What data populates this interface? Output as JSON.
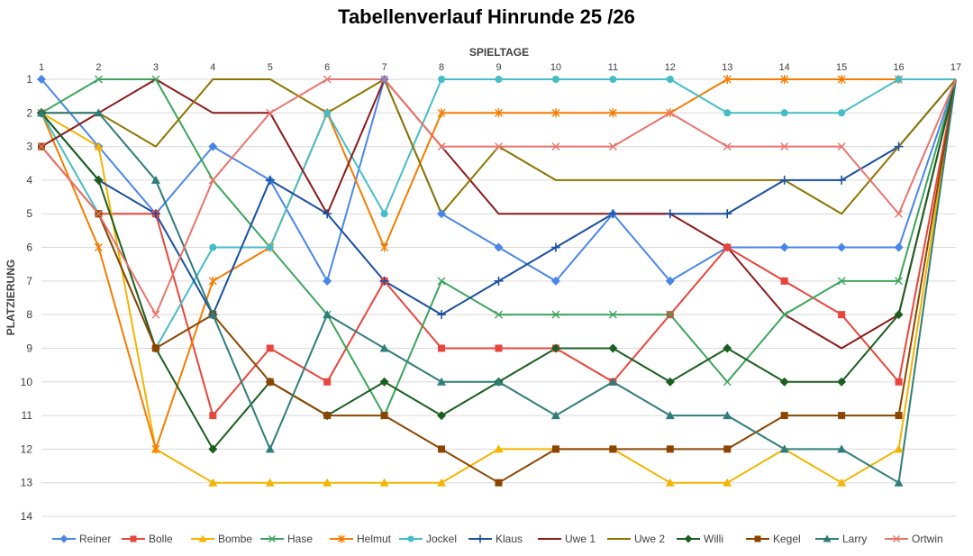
{
  "chart_data": {
    "type": "line",
    "title": "Tabellenverlauf Hinrunde 25 /26",
    "xlabel": "SPIELTAGE",
    "ylabel": "PLATZIERUNG",
    "x": [
      1,
      2,
      3,
      4,
      5,
      6,
      7,
      8,
      9,
      10,
      11,
      12,
      13,
      14,
      15,
      16,
      17
    ],
    "x_ticks": [
      "1",
      "2",
      "3",
      "4",
      "5",
      "6",
      "7",
      "8",
      "9",
      "10",
      "11",
      "12",
      "13",
      "14",
      "15",
      "16",
      "17"
    ],
    "y_ticks": [
      "1",
      "2",
      "3",
      "4",
      "5",
      "6",
      "7",
      "8",
      "9",
      "10",
      "11",
      "12",
      "13",
      "14"
    ],
    "ylim": [
      1,
      14
    ],
    "y_reversed": true,
    "x_axis_position": "top",
    "grid": true,
    "legend": "bottom",
    "series": [
      {
        "name": "Reiner",
        "color": "#4A86E8",
        "marker": "diamond",
        "values": [
          1,
          3,
          5,
          3,
          4,
          7,
          1,
          5,
          6,
          7,
          5,
          7,
          6,
          6,
          6,
          6,
          1
        ]
      },
      {
        "name": "Bolle",
        "color": "#E8453C",
        "marker": "square",
        "values": [
          3,
          5,
          5,
          11,
          9,
          10,
          7,
          9,
          9,
          9,
          10,
          8,
          6,
          7,
          8,
          10,
          1
        ]
      },
      {
        "name": "Bombe",
        "color": "#F4B400",
        "marker": "triangle",
        "values": [
          2,
          3,
          12,
          13,
          13,
          13,
          13,
          13,
          12,
          12,
          12,
          13,
          13,
          12,
          13,
          12,
          1
        ]
      },
      {
        "name": "Hase",
        "color": "#3BA55C",
        "marker": "x",
        "values": [
          2,
          1,
          1,
          4,
          6,
          8,
          11,
          7,
          8,
          8,
          8,
          8,
          10,
          8,
          7,
          7,
          1
        ]
      },
      {
        "name": "Helmut",
        "color": "#F57C00",
        "marker": "star",
        "values": [
          2,
          6,
          12,
          7,
          6,
          2,
          6,
          2,
          2,
          2,
          2,
          2,
          1,
          1,
          1,
          1,
          1
        ]
      },
      {
        "name": "Jockel",
        "color": "#46BDC6",
        "marker": "circle",
        "values": [
          2,
          5,
          9,
          6,
          6,
          2,
          5,
          1,
          1,
          1,
          1,
          1,
          2,
          2,
          2,
          1,
          1
        ]
      },
      {
        "name": "Klaus",
        "color": "#1A4FA0",
        "marker": "plus",
        "values": [
          2,
          4,
          5,
          8,
          4,
          5,
          7,
          8,
          7,
          6,
          5,
          5,
          5,
          4,
          4,
          3,
          1
        ]
      },
      {
        "name": "Uwe 1",
        "color": "#8B1A1A",
        "marker": "none",
        "values": [
          3,
          2,
          1,
          2,
          2,
          5,
          1,
          3,
          5,
          5,
          5,
          5,
          6,
          8,
          9,
          8,
          1
        ]
      },
      {
        "name": "Uwe 2",
        "color": "#8B7500",
        "marker": "none",
        "values": [
          2,
          2,
          3,
          1,
          1,
          2,
          1,
          5,
          3,
          4,
          4,
          4,
          4,
          4,
          5,
          3,
          1
        ]
      },
      {
        "name": "Willi",
        "color": "#1B5E20",
        "marker": "diamond",
        "values": [
          2,
          4,
          9,
          12,
          10,
          11,
          10,
          11,
          10,
          9,
          9,
          10,
          9,
          10,
          10,
          8,
          1
        ]
      },
      {
        "name": "Kegel",
        "color": "#8B4500",
        "marker": "square",
        "values": [
          3,
          5,
          9,
          8,
          10,
          11,
          11,
          12,
          13,
          12,
          12,
          12,
          12,
          11,
          11,
          11,
          1
        ]
      },
      {
        "name": "Larry",
        "color": "#2E7D7A",
        "marker": "triangle",
        "values": [
          2,
          2,
          4,
          8,
          12,
          8,
          9,
          10,
          10,
          11,
          10,
          11,
          11,
          12,
          12,
          13,
          1
        ]
      },
      {
        "name": "Ortwin",
        "color": "#E8756C",
        "marker": "x",
        "values": [
          3,
          5,
          8,
          4,
          2,
          1,
          1,
          3,
          3,
          3,
          3,
          2,
          3,
          3,
          3,
          5,
          1
        ]
      }
    ]
  }
}
